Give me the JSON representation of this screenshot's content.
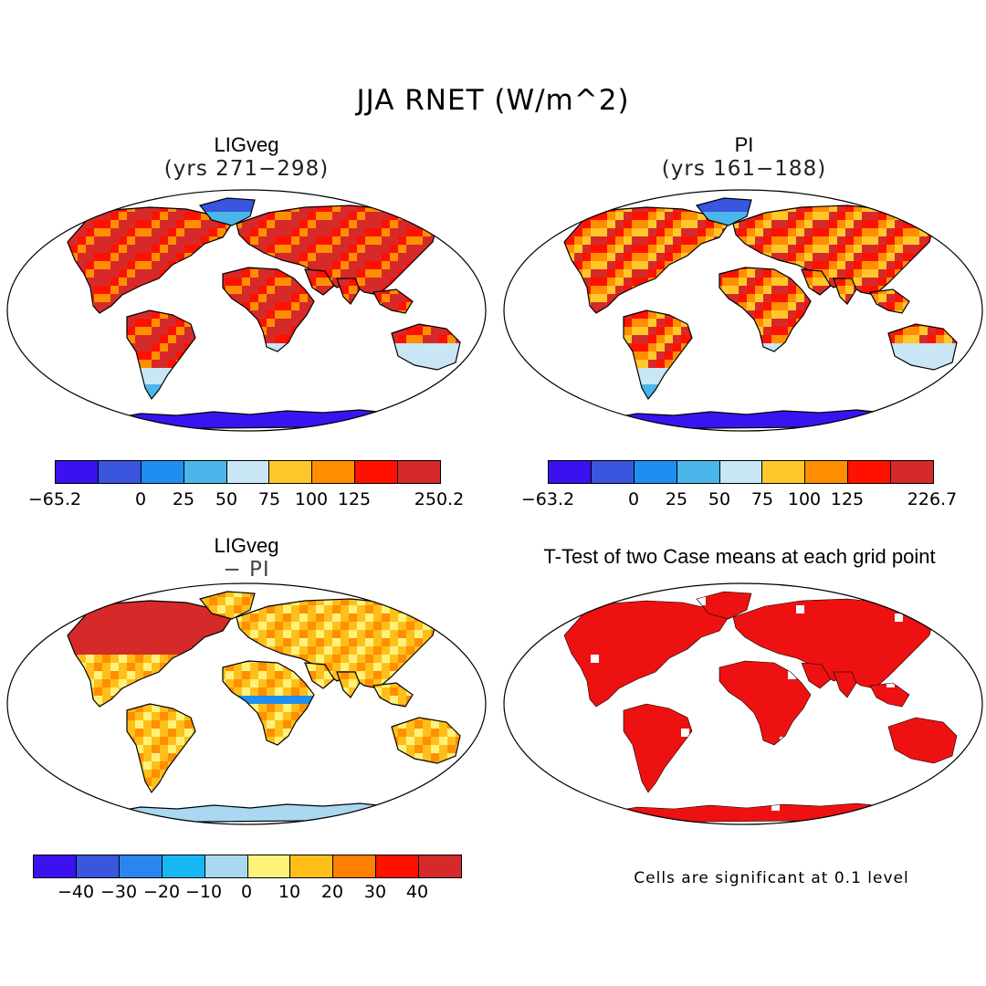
{
  "figure_title": "JJA RNET (W/m^2)",
  "colors": {
    "land_base": [
      "#f05a10",
      "#e8801a",
      "#e34021",
      "#e3a01f"
    ],
    "ice": "#3a14f0",
    "outline": "#000000",
    "ttest": "#ee1111"
  },
  "panels": [
    {
      "title": "LIGveg",
      "subtitle": "(yrs 271−298)",
      "colorbar": {
        "colors": [
          "#3b12ef",
          "#3a55de",
          "#1e8ef0",
          "#4bb6ea",
          "#c8e6f4",
          "#ffc72a",
          "#ff8f00",
          "#ff1100",
          "#d62a2a"
        ],
        "tick_labels": [
          "−65.2",
          "0",
          "25",
          "50",
          "75",
          "100",
          "125",
          "250.2"
        ]
      }
    },
    {
      "title": "PI",
      "subtitle": "(yrs 161−188)",
      "colorbar": {
        "colors": [
          "#3b12ef",
          "#3a55de",
          "#1e8ef0",
          "#4bb6ea",
          "#c8e6f4",
          "#ffc72a",
          "#ff8f00",
          "#ff1100",
          "#d62a2a"
        ],
        "tick_labels": [
          "−63.2",
          "0",
          "25",
          "50",
          "75",
          "100",
          "125",
          "226.7"
        ]
      }
    },
    {
      "title": "LIGveg",
      "subtitle": "− PI",
      "colorbar": {
        "colors": [
          "#3b12ef",
          "#3a55de",
          "#2b85ee",
          "#17b7f4",
          "#a9d8f0",
          "#fff27a",
          "#ffbf1a",
          "#ff7f00",
          "#ff1100",
          "#d62a2a"
        ],
        "tick_labels": [
          "−40",
          "−30",
          "−20",
          "−10",
          "0",
          "10",
          "20",
          "30",
          "40"
        ]
      }
    },
    {
      "title": "T-Test of two Case means at each grid point",
      "note": "Cells are significant at 0.1 level"
    }
  ]
}
